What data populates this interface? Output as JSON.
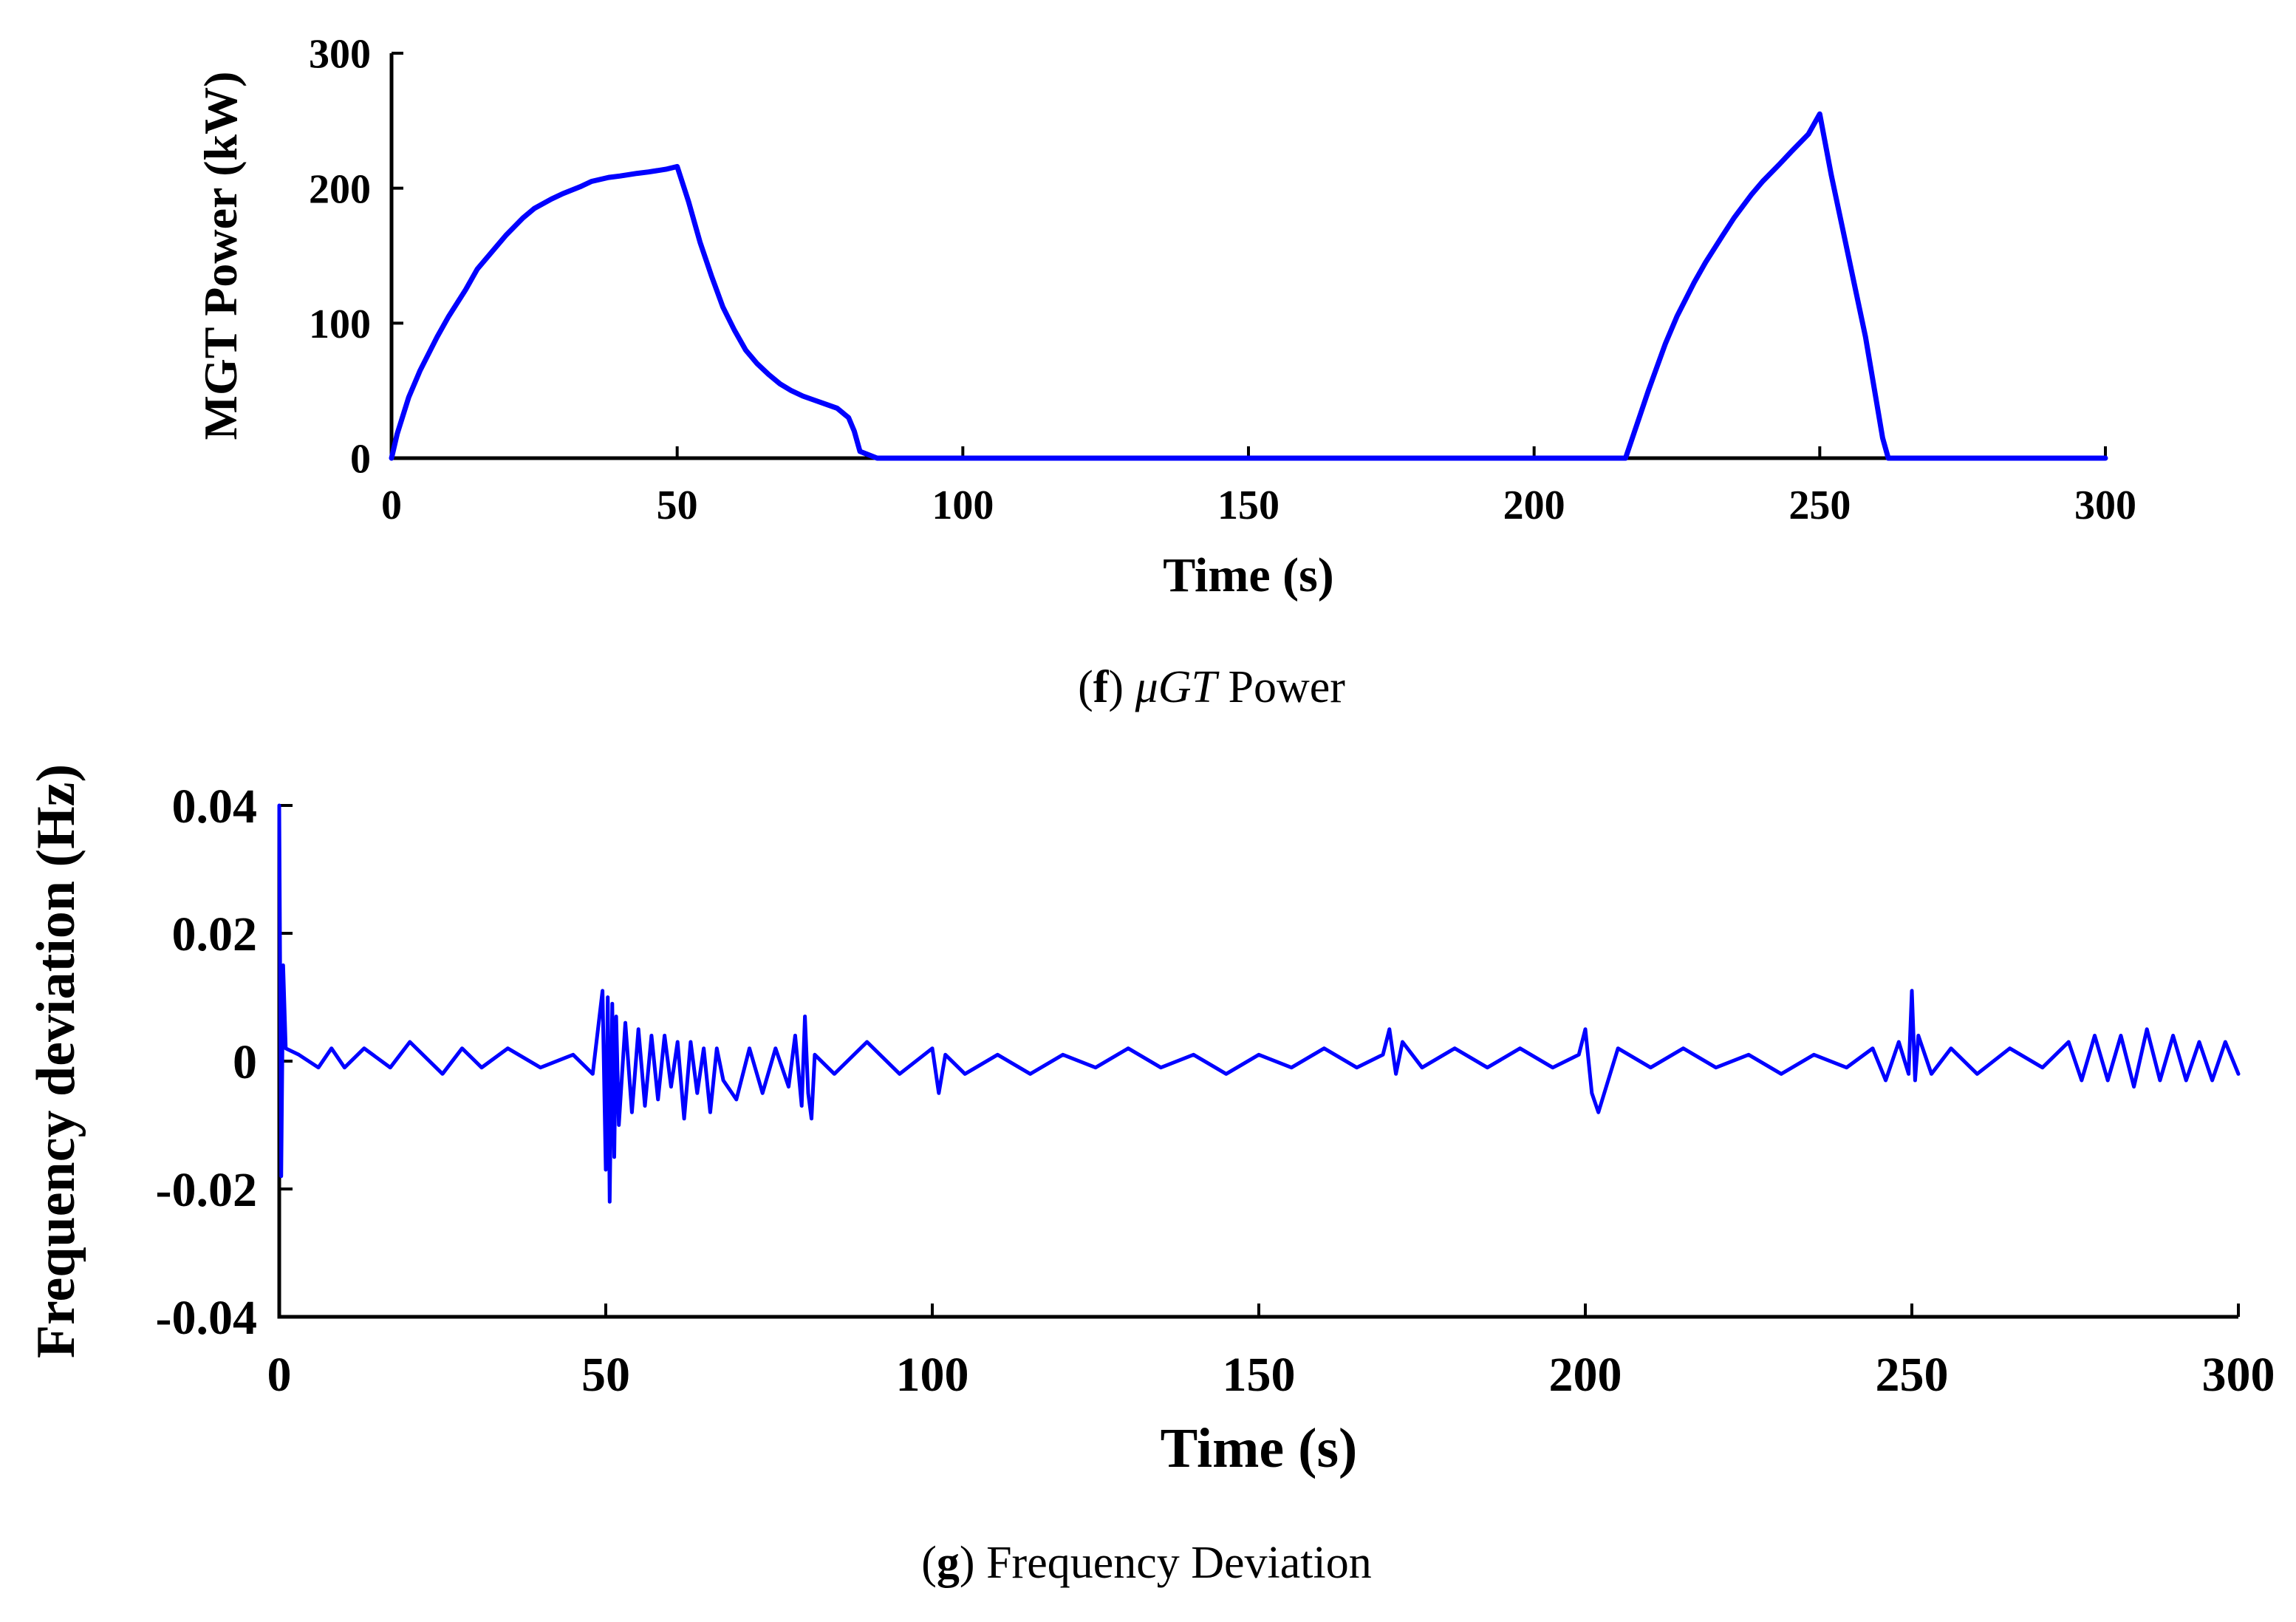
{
  "chart_data": [
    {
      "type": "line",
      "panel_label": "f",
      "caption_symbol": "μGT",
      "caption_text": "Power",
      "title": "",
      "xlabel": "Time (s)",
      "ylabel": "MGT Power (kW)",
      "xlim": [
        0,
        300
      ],
      "ylim": [
        0,
        300
      ],
      "xticks": [
        0,
        50,
        100,
        150,
        200,
        250,
        300
      ],
      "yticks": [
        0,
        100,
        200,
        300
      ],
      "xtick_labels": [
        "0",
        "50",
        "100",
        "150",
        "200",
        "250",
        "300"
      ],
      "ytick_labels": [
        "0",
        "100",
        "200",
        "300"
      ],
      "grid": false,
      "series": [
        {
          "name": "MGT Power",
          "color": "#0000ff",
          "x": [
            0,
            1,
            3,
            5,
            8,
            10,
            13,
            15,
            18,
            20,
            23,
            25,
            28,
            30,
            33,
            35,
            38,
            40,
            43,
            45,
            48,
            50,
            52,
            54,
            56,
            58,
            60,
            62,
            64,
            66,
            68,
            70,
            72,
            74,
            76,
            78,
            80,
            81,
            82,
            85,
            100,
            150,
            200,
            216,
            218,
            220,
            223,
            225,
            228,
            230,
            233,
            235,
            238,
            240,
            243,
            245,
            248,
            250,
            252,
            254,
            256,
            258,
            260,
            261,
            262,
            270,
            290,
            300
          ],
          "y": [
            0,
            18,
            45,
            65,
            90,
            105,
            125,
            140,
            155,
            165,
            178,
            185,
            192,
            196,
            201,
            205,
            208,
            209,
            211,
            212,
            214,
            216,
            190,
            160,
            135,
            112,
            95,
            80,
            70,
            62,
            55,
            50,
            46,
            43,
            40,
            37,
            30,
            20,
            5,
            0,
            0,
            0,
            0,
            0,
            25,
            50,
            85,
            105,
            130,
            145,
            165,
            178,
            195,
            205,
            218,
            227,
            240,
            255,
            210,
            170,
            130,
            90,
            40,
            15,
            0,
            0,
            0,
            0
          ]
        }
      ]
    },
    {
      "type": "line",
      "panel_label": "g",
      "caption_text": "Frequency Deviation",
      "title": "",
      "xlabel": "Time (s)",
      "ylabel": "Frequency deviation (Hz)",
      "xlim": [
        0,
        300
      ],
      "ylim": [
        -0.04,
        0.04
      ],
      "xticks": [
        0,
        50,
        100,
        150,
        200,
        250,
        300
      ],
      "yticks": [
        -0.04,
        -0.02,
        0,
        0.02,
        0.04
      ],
      "xtick_labels": [
        "0",
        "50",
        "100",
        "150",
        "200",
        "250",
        "300"
      ],
      "ytick_labels": [
        "-0.04",
        "-0.02",
        "0",
        "0.02",
        "0.04"
      ],
      "grid": false,
      "series": [
        {
          "name": "Frequency deviation",
          "color": "#0000ff",
          "x": [
            0,
            0.3,
            0.6,
            1,
            3,
            6,
            8,
            10,
            13,
            17,
            20,
            25,
            28,
            31,
            35,
            40,
            45,
            48,
            49.5,
            50,
            50.3,
            50.6,
            51,
            51.3,
            51.6,
            52,
            53,
            54,
            55,
            56,
            57,
            58,
            59,
            60,
            61,
            62,
            63,
            64,
            65,
            66,
            67,
            68,
            70,
            72,
            74,
            76,
            78,
            79,
            80,
            80.5,
            81,
            81.5,
            82,
            85,
            90,
            95,
            100,
            101,
            102,
            105,
            110,
            115,
            120,
            125,
            130,
            135,
            140,
            145,
            150,
            155,
            160,
            165,
            169,
            170,
            171,
            172,
            175,
            180,
            185,
            190,
            195,
            199,
            200,
            201,
            202,
            205,
            210,
            215,
            220,
            225,
            230,
            235,
            240,
            244,
            246,
            248,
            249.5,
            250,
            250.5,
            251,
            253,
            256,
            260,
            265,
            270,
            274,
            276,
            278,
            280,
            282,
            284,
            286,
            288,
            290,
            292,
            294,
            296,
            298,
            300
          ],
          "y": [
            0.04,
            -0.018,
            0.015,
            0.002,
            0.001,
            -0.001,
            0.002,
            -0.001,
            0.002,
            -0.001,
            0.003,
            -0.002,
            0.002,
            -0.001,
            0.002,
            -0.001,
            0.001,
            -0.002,
            0.011,
            -0.017,
            0.01,
            -0.022,
            0.009,
            -0.015,
            0.007,
            -0.01,
            0.006,
            -0.008,
            0.005,
            -0.007,
            0.004,
            -0.006,
            0.004,
            -0.004,
            0.003,
            -0.009,
            0.003,
            -0.005,
            0.002,
            -0.008,
            0.002,
            -0.003,
            -0.006,
            0.002,
            -0.005,
            0.002,
            -0.004,
            0.004,
            -0.007,
            0.007,
            -0.005,
            -0.009,
            0.001,
            -0.002,
            0.003,
            -0.002,
            0.002,
            -0.005,
            0.001,
            -0.002,
            0.001,
            -0.002,
            0.001,
            -0.001,
            0.002,
            -0.001,
            0.001,
            -0.002,
            0.001,
            -0.001,
            0.002,
            -0.001,
            0.001,
            0.005,
            -0.002,
            0.003,
            -0.001,
            0.002,
            -0.001,
            0.002,
            -0.001,
            0.001,
            0.005,
            -0.005,
            -0.008,
            0.002,
            -0.001,
            0.002,
            -0.001,
            0.001,
            -0.002,
            0.001,
            -0.001,
            0.002,
            -0.003,
            0.003,
            -0.002,
            0.011,
            -0.003,
            0.004,
            -0.002,
            0.002,
            -0.002,
            0.002,
            -0.001,
            0.003,
            -0.003,
            0.004,
            -0.003,
            0.004,
            -0.004,
            0.005,
            -0.003,
            0.004,
            -0.003,
            0.003,
            -0.003,
            0.003,
            -0.002
          ]
        }
      ]
    }
  ]
}
